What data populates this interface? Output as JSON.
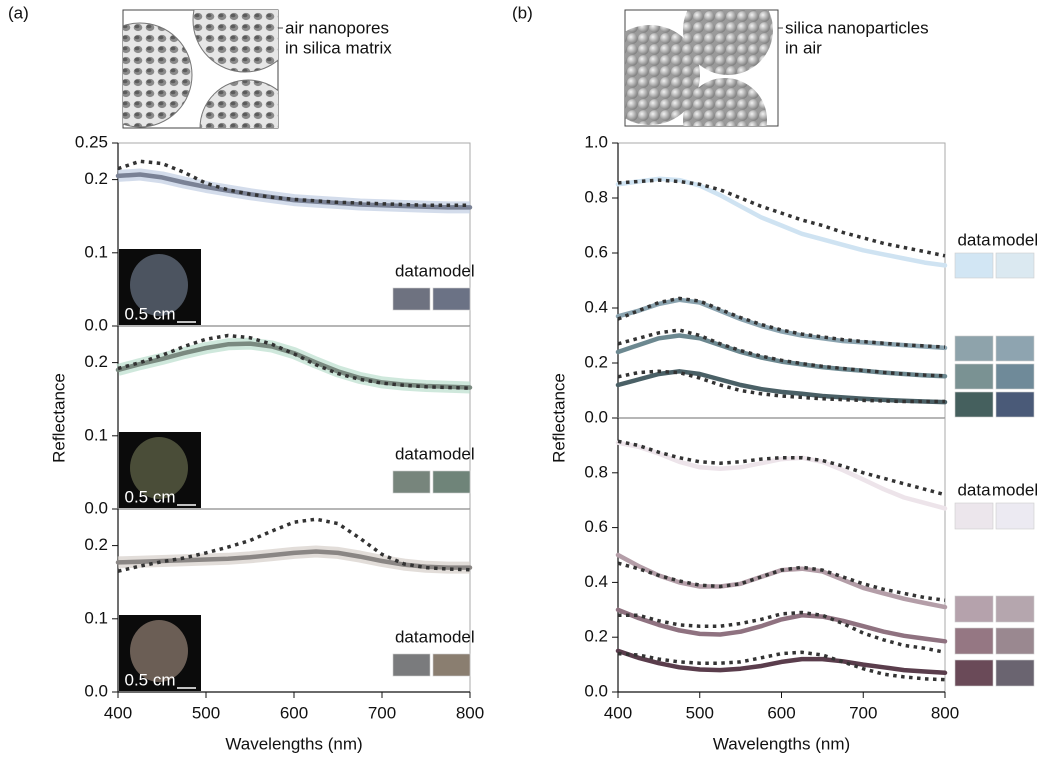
{
  "chart_data": [
    {
      "type": "line",
      "panel_label": "(a)",
      "schematic_label": [
        "air nanopores",
        "in silica matrix"
      ],
      "x": [
        400,
        425,
        450,
        475,
        500,
        525,
        550,
        575,
        600,
        625,
        650,
        675,
        700,
        725,
        750,
        775,
        800
      ],
      "xlim": [
        400,
        800
      ],
      "ylim": [
        0,
        0.25
      ],
      "yticks": [
        {
          "value": 0,
          "label": "0.0"
        },
        0.1,
        0.2,
        0.25
      ],
      "model_color": "#333333",
      "swatch_labels": [
        "data",
        "model"
      ],
      "inset_label": "0.5 cm",
      "photo_color": "#4c5460",
      "series": [
        {
          "color": "#7a8296",
          "band_color": "#c4d0e4",
          "swatch": [
            "#6e7280",
            "#6b7285"
          ],
          "values": [
            0.205,
            0.207,
            0.203,
            0.196,
            0.19,
            0.185,
            0.18,
            0.176,
            0.172,
            0.17,
            0.168,
            0.166,
            0.165,
            0.164,
            0.163,
            0.162,
            0.162
          ],
          "model_values": [
            0.215,
            0.225,
            0.222,
            0.21,
            0.195,
            0.186,
            0.18,
            0.176,
            0.173,
            0.171,
            0.169,
            0.168,
            0.167,
            0.166,
            0.165,
            0.165,
            0.165
          ]
        }
      ]
    },
    {
      "type": "line",
      "ylabel": "Reflectance",
      "x": [
        400,
        425,
        450,
        475,
        500,
        525,
        550,
        575,
        600,
        625,
        650,
        675,
        700,
        725,
        750,
        775,
        800
      ],
      "xlim": [
        400,
        800
      ],
      "ylim": [
        0,
        0.25
      ],
      "yticks": [
        {
          "value": 0,
          "label": "0.0"
        },
        0.1,
        0.2
      ],
      "model_color": "#333333",
      "swatch_labels": [
        "data",
        "model"
      ],
      "inset_label": "0.5 cm",
      "photo_color": "#4a4d38",
      "series": [
        {
          "color": "#7a8a80",
          "band_color": "#bfe0d0",
          "swatch": [
            "#77857c",
            "#6f8479"
          ],
          "values": [
            0.19,
            0.198,
            0.205,
            0.213,
            0.22,
            0.225,
            0.226,
            0.222,
            0.213,
            0.2,
            0.188,
            0.179,
            0.173,
            0.17,
            0.168,
            0.167,
            0.166
          ],
          "model_values": [
            0.192,
            0.2,
            0.21,
            0.222,
            0.232,
            0.237,
            0.234,
            0.225,
            0.212,
            0.197,
            0.185,
            0.177,
            0.172,
            0.169,
            0.167,
            0.166,
            0.165
          ]
        }
      ]
    },
    {
      "type": "line",
      "xlabel": "Wavelengths (nm)",
      "x": [
        400,
        425,
        450,
        475,
        500,
        525,
        550,
        575,
        600,
        625,
        650,
        675,
        700,
        725,
        750,
        775,
        800
      ],
      "xlim": [
        400,
        800
      ],
      "xticks": [
        400,
        500,
        600,
        700,
        800
      ],
      "ylim": [
        0,
        0.25
      ],
      "yticks": [
        {
          "value": 0,
          "label": "0.0"
        },
        0.1,
        0.2
      ],
      "model_color": "#333333",
      "swatch_labels": [
        "data",
        "model"
      ],
      "inset_label": "0.5 cm",
      "photo_color": "#6b5e55",
      "series": [
        {
          "color": "#8a8684",
          "band_color": "#d8d2cc",
          "swatch": [
            "#7a7b7d",
            "#8a7e70"
          ],
          "values": [
            0.177,
            0.178,
            0.179,
            0.18,
            0.181,
            0.182,
            0.184,
            0.187,
            0.19,
            0.192,
            0.19,
            0.185,
            0.179,
            0.174,
            0.171,
            0.17,
            0.17
          ],
          "model_values": [
            0.165,
            0.172,
            0.178,
            0.183,
            0.19,
            0.198,
            0.207,
            0.22,
            0.232,
            0.236,
            0.23,
            0.21,
            0.188,
            0.175,
            0.17,
            0.168,
            0.167
          ]
        }
      ]
    },
    {
      "type": "line",
      "panel_label": "(b)",
      "schematic_label": [
        "silica nanoparticles",
        "in air"
      ],
      "ylabel": "Reflectance",
      "x": [
        400,
        425,
        450,
        475,
        500,
        525,
        550,
        575,
        600,
        625,
        650,
        675,
        700,
        725,
        750,
        775,
        800
      ],
      "xlim": [
        400,
        800
      ],
      "ylim": [
        0,
        1.0
      ],
      "yticks": [
        {
          "value": 0,
          "label": "0.0"
        },
        0.2,
        0.4,
        0.6,
        0.8,
        {
          "value": 1,
          "label": "1.0"
        }
      ],
      "model_color": "#333333",
      "swatch_labels": [
        "data",
        "model"
      ],
      "series": [
        {
          "color": "#cfe3f2",
          "swatch": [
            "#d2e6f4",
            "#dbe9f1"
          ],
          "values": [
            0.85,
            0.86,
            0.87,
            0.865,
            0.845,
            0.81,
            0.77,
            0.73,
            0.7,
            0.67,
            0.65,
            0.63,
            0.61,
            0.595,
            0.58,
            0.565,
            0.555
          ],
          "model_values": [
            0.855,
            0.86,
            0.865,
            0.86,
            0.85,
            0.83,
            0.8,
            0.77,
            0.745,
            0.72,
            0.7,
            0.675,
            0.655,
            0.635,
            0.62,
            0.605,
            0.59
          ]
        },
        {
          "color": "#8ba4b0",
          "swatch": [
            "#8ea3ab",
            "#8ea4b0"
          ],
          "values": [
            0.37,
            0.39,
            0.415,
            0.43,
            0.42,
            0.39,
            0.36,
            0.335,
            0.315,
            0.3,
            0.29,
            0.28,
            0.275,
            0.27,
            0.265,
            0.26,
            0.255
          ],
          "model_values": [
            0.36,
            0.39,
            0.42,
            0.435,
            0.425,
            0.395,
            0.365,
            0.34,
            0.32,
            0.305,
            0.295,
            0.285,
            0.278,
            0.272,
            0.266,
            0.262,
            0.258
          ]
        },
        {
          "color": "#6c8890",
          "swatch": [
            "#7a9293",
            "#6f8a99"
          ],
          "values": [
            0.24,
            0.265,
            0.29,
            0.3,
            0.29,
            0.265,
            0.24,
            0.22,
            0.205,
            0.195,
            0.185,
            0.178,
            0.172,
            0.165,
            0.16,
            0.155,
            0.152
          ],
          "model_values": [
            0.27,
            0.29,
            0.31,
            0.32,
            0.3,
            0.27,
            0.245,
            0.225,
            0.21,
            0.198,
            0.188,
            0.18,
            0.173,
            0.166,
            0.16,
            0.156,
            0.153
          ]
        },
        {
          "color": "#4a6066",
          "swatch": [
            "#45605e",
            "#4a5a78"
          ],
          "values": [
            0.12,
            0.14,
            0.16,
            0.17,
            0.16,
            0.14,
            0.12,
            0.105,
            0.095,
            0.088,
            0.08,
            0.075,
            0.07,
            0.066,
            0.063,
            0.06,
            0.058
          ],
          "model_values": [
            0.15,
            0.165,
            0.17,
            0.165,
            0.145,
            0.12,
            0.1,
            0.088,
            0.08,
            0.075,
            0.07,
            0.067,
            0.064,
            0.062,
            0.06,
            0.06,
            0.06
          ]
        }
      ]
    },
    {
      "type": "line",
      "xlabel": "Wavelengths (nm)",
      "x": [
        400,
        425,
        450,
        475,
        500,
        525,
        550,
        575,
        600,
        625,
        650,
        675,
        700,
        725,
        750,
        775,
        800
      ],
      "xlim": [
        400,
        800
      ],
      "xticks": [
        400,
        500,
        600,
        700,
        800
      ],
      "ylim": [
        0,
        1.0
      ],
      "yticks": [
        {
          "value": 0,
          "label": "0.0"
        },
        0.2,
        0.4,
        0.6,
        0.8
      ],
      "model_color": "#333333",
      "swatch_labels": [
        "data",
        "model"
      ],
      "series": [
        {
          "color": "#ede4ea",
          "swatch": [
            "#ece6ec",
            "#eceaf2"
          ],
          "values": [
            0.91,
            0.895,
            0.87,
            0.84,
            0.82,
            0.815,
            0.82,
            0.835,
            0.85,
            0.855,
            0.84,
            0.81,
            0.775,
            0.74,
            0.71,
            0.69,
            0.67
          ],
          "model_values": [
            0.915,
            0.9,
            0.875,
            0.855,
            0.84,
            0.835,
            0.84,
            0.85,
            0.855,
            0.855,
            0.845,
            0.825,
            0.8,
            0.78,
            0.76,
            0.74,
            0.72
          ]
        },
        {
          "color": "#b49ea8",
          "swatch": [
            "#b5a2ac",
            "#b5a6ae"
          ],
          "values": [
            0.5,
            0.46,
            0.425,
            0.4,
            0.385,
            0.385,
            0.395,
            0.42,
            0.445,
            0.45,
            0.44,
            0.41,
            0.38,
            0.36,
            0.34,
            0.325,
            0.31
          ],
          "model_values": [
            0.47,
            0.45,
            0.425,
            0.405,
            0.39,
            0.385,
            0.395,
            0.42,
            0.445,
            0.455,
            0.445,
            0.42,
            0.395,
            0.375,
            0.36,
            0.345,
            0.335
          ]
        },
        {
          "color": "#8f7280",
          "swatch": [
            "#957783",
            "#9a8890"
          ],
          "values": [
            0.3,
            0.27,
            0.245,
            0.225,
            0.212,
            0.21,
            0.22,
            0.24,
            0.265,
            0.28,
            0.275,
            0.26,
            0.24,
            0.22,
            0.205,
            0.195,
            0.185
          ],
          "model_values": [
            0.28,
            0.28,
            0.26,
            0.245,
            0.24,
            0.24,
            0.25,
            0.265,
            0.285,
            0.29,
            0.28,
            0.25,
            0.215,
            0.19,
            0.17,
            0.16,
            0.145
          ]
        },
        {
          "color": "#5a3d4c",
          "swatch": [
            "#6a4a58",
            "#6a6470"
          ],
          "values": [
            0.15,
            0.125,
            0.105,
            0.09,
            0.082,
            0.08,
            0.085,
            0.095,
            0.11,
            0.12,
            0.12,
            0.112,
            0.1,
            0.09,
            0.08,
            0.075,
            0.07
          ],
          "model_values": [
            0.14,
            0.135,
            0.12,
            0.11,
            0.105,
            0.105,
            0.11,
            0.125,
            0.14,
            0.145,
            0.135,
            0.11,
            0.085,
            0.065,
            0.055,
            0.048,
            0.045
          ]
        }
      ]
    }
  ]
}
